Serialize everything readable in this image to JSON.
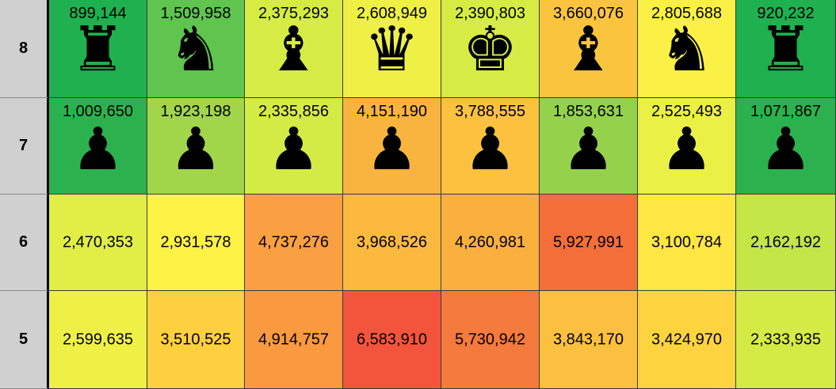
{
  "chart_data": {
    "type": "heatmap",
    "title": "",
    "rows": [
      {
        "label": "8",
        "cells": [
          {
            "value": "899,144",
            "piece": "rook-icon",
            "glyph": "♜",
            "color": "#1fb04f"
          },
          {
            "value": "1,509,958",
            "piece": "knight-icon",
            "glyph": "♞",
            "color": "#5fc54e"
          },
          {
            "value": "2,375,293",
            "piece": "bishop-icon",
            "glyph": "♝",
            "color": "#d6ec45"
          },
          {
            "value": "2,608,949",
            "piece": "queen-icon",
            "glyph": "♛",
            "color": "#eef046"
          },
          {
            "value": "2,390,803",
            "piece": "king-icon",
            "glyph": "♚",
            "color": "#d6ec45"
          },
          {
            "value": "3,660,076",
            "piece": "bishop-icon",
            "glyph": "♝",
            "color": "#fbc43f"
          },
          {
            "value": "2,805,688",
            "piece": "knight-icon",
            "glyph": "♞",
            "color": "#fbf146"
          },
          {
            "value": "920,232",
            "piece": "rook-icon",
            "glyph": "♜",
            "color": "#1fb04f"
          }
        ]
      },
      {
        "label": "7",
        "cells": [
          {
            "value": "1,009,650",
            "piece": "pawn-icon",
            "glyph": "♟",
            "color": "#2bb24f"
          },
          {
            "value": "1,923,198",
            "piece": "pawn-icon",
            "glyph": "♟",
            "color": "#a1d64b"
          },
          {
            "value": "2,335,856",
            "piece": "pawn-icon",
            "glyph": "♟",
            "color": "#d4eb46"
          },
          {
            "value": "4,151,190",
            "piece": "pawn-icon",
            "glyph": "♟",
            "color": "#f9b33f"
          },
          {
            "value": "3,788,555",
            "piece": "pawn-icon",
            "glyph": "♟",
            "color": "#fbc13f"
          },
          {
            "value": "1,853,631",
            "piece": "pawn-icon",
            "glyph": "♟",
            "color": "#95d24b"
          },
          {
            "value": "2,525,493",
            "piece": "pawn-icon",
            "glyph": "♟",
            "color": "#eaf046"
          },
          {
            "value": "1,071,867",
            "piece": "pawn-icon",
            "glyph": "♟",
            "color": "#2bb24f"
          }
        ]
      },
      {
        "label": "6",
        "cells": [
          {
            "value": "2,470,353",
            "piece": "",
            "glyph": "",
            "color": "#e1ee45"
          },
          {
            "value": "2,931,578",
            "piece": "",
            "glyph": "",
            "color": "#fdf246"
          },
          {
            "value": "4,737,276",
            "piece": "",
            "glyph": "",
            "color": "#f9a042"
          },
          {
            "value": "3,968,526",
            "piece": "",
            "glyph": "",
            "color": "#fbba3f"
          },
          {
            "value": "4,260,981",
            "piece": "",
            "glyph": "",
            "color": "#f9b03f"
          },
          {
            "value": "5,927,991",
            "piece": "",
            "glyph": "",
            "color": "#f46e3a"
          },
          {
            "value": "3,100,784",
            "piece": "",
            "glyph": "",
            "color": "#fee645"
          },
          {
            "value": "2,162,192",
            "piece": "",
            "glyph": "",
            "color": "#c4e646"
          }
        ]
      },
      {
        "label": "5",
        "cells": [
          {
            "value": "2,599,635",
            "piece": "",
            "glyph": "",
            "color": "#eef046"
          },
          {
            "value": "3,510,525",
            "piece": "",
            "glyph": "",
            "color": "#fdd03f"
          },
          {
            "value": "4,914,757",
            "piece": "",
            "glyph": "",
            "color": "#f99a41"
          },
          {
            "value": "6,583,910",
            "piece": "",
            "glyph": "",
            "color": "#f2553c"
          },
          {
            "value": "5,730,942",
            "piece": "",
            "glyph": "",
            "color": "#f47a3d"
          },
          {
            "value": "3,843,170",
            "piece": "",
            "glyph": "",
            "color": "#fbc03f"
          },
          {
            "value": "3,424,970",
            "piece": "",
            "glyph": "",
            "color": "#fdd43f"
          },
          {
            "value": "2,333,935",
            "piece": "",
            "glyph": "",
            "color": "#d4eb46"
          }
        ]
      }
    ]
  }
}
